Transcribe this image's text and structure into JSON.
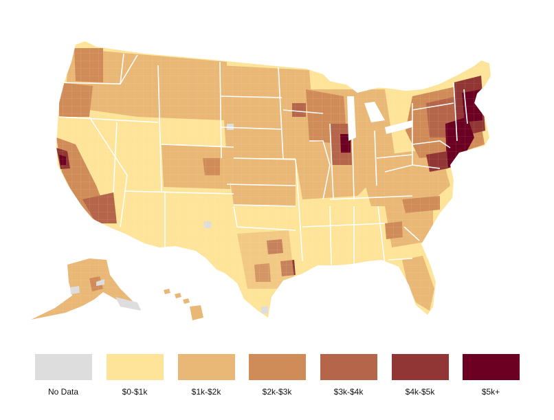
{
  "map": {
    "subject": "US county choropleth",
    "colors": {
      "border": "#ffffff",
      "nodata": "#dddddd",
      "c0": "#fee499",
      "c1": "#e9b776",
      "c2": "#d08c58",
      "c3": "#b5654a",
      "c4": "#913634",
      "c5": "#6b0022"
    }
  },
  "legend": {
    "items": [
      {
        "label": "No Data",
        "color": "#dddddd"
      },
      {
        "label": "$0-$1k",
        "color": "#fee499"
      },
      {
        "label": "$1k-$2k",
        "color": "#e9b776"
      },
      {
        "label": "$2k-$3k",
        "color": "#d08c58"
      },
      {
        "label": "$3k-$4k",
        "color": "#b5654a"
      },
      {
        "label": "$4k-$5k",
        "color": "#913634"
      },
      {
        "label": "$5k+",
        "color": "#6b0022"
      }
    ]
  }
}
